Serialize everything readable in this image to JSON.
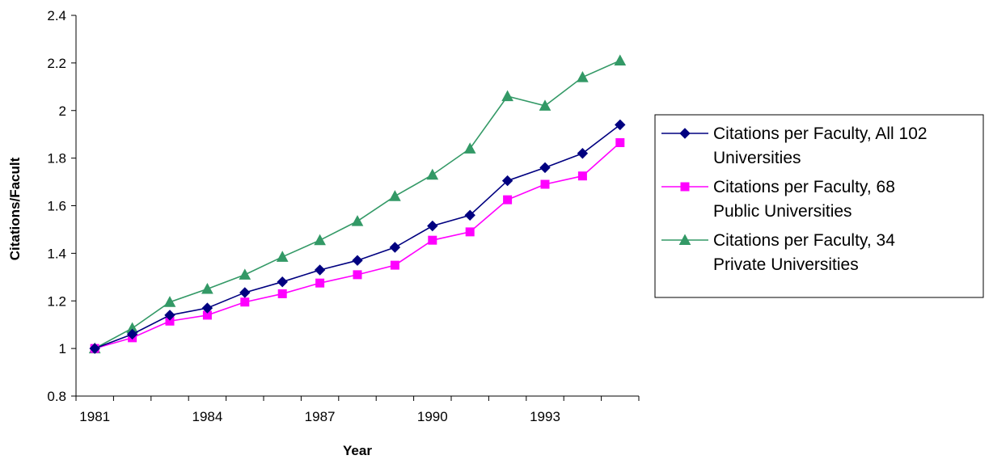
{
  "chart_data": {
    "type": "line",
    "title": "",
    "xlabel": "Year",
    "ylabel": "Citations/Facult",
    "x": [
      1981,
      1982,
      1983,
      1984,
      1985,
      1986,
      1987,
      1988,
      1989,
      1990,
      1991,
      1992,
      1993,
      1994,
      1995
    ],
    "x_tick_labels": [
      "1981",
      "1984",
      "1987",
      "1990",
      "1993"
    ],
    "y_tick_labels": [
      "0.8",
      "1",
      "1.2",
      "1.4",
      "1.6",
      "1.8",
      "2",
      "2.2",
      "2.4"
    ],
    "ylim": [
      0.8,
      2.4
    ],
    "grid": false,
    "legend_position": "right",
    "series": [
      {
        "name": "Citations per Faculty, All 102 Universities",
        "legend_lines": [
          "Citations per Faculty, All 102",
          "Universities"
        ],
        "color": "#000080",
        "marker": "diamond",
        "values": [
          1.0,
          1.06,
          1.14,
          1.17,
          1.235,
          1.28,
          1.33,
          1.37,
          1.425,
          1.515,
          1.56,
          1.705,
          1.76,
          1.82,
          1.94
        ]
      },
      {
        "name": "Citations per Faculty, 68 Public Universities",
        "legend_lines": [
          "Citations per Faculty, 68",
          "Public Universities"
        ],
        "color": "#ff00ff",
        "marker": "square",
        "values": [
          1.0,
          1.045,
          1.115,
          1.14,
          1.195,
          1.23,
          1.275,
          1.31,
          1.35,
          1.455,
          1.49,
          1.625,
          1.69,
          1.725,
          1.865
        ]
      },
      {
        "name": "Citations per Faculty, 34 Private Universities",
        "legend_lines": [
          "Citations per Faculty, 34",
          "Private Universities"
        ],
        "color": "#339966",
        "marker": "triangle",
        "values": [
          1.0,
          1.085,
          1.195,
          1.25,
          1.31,
          1.385,
          1.455,
          1.535,
          1.64,
          1.73,
          1.84,
          2.06,
          2.02,
          2.14,
          2.21
        ]
      }
    ]
  }
}
